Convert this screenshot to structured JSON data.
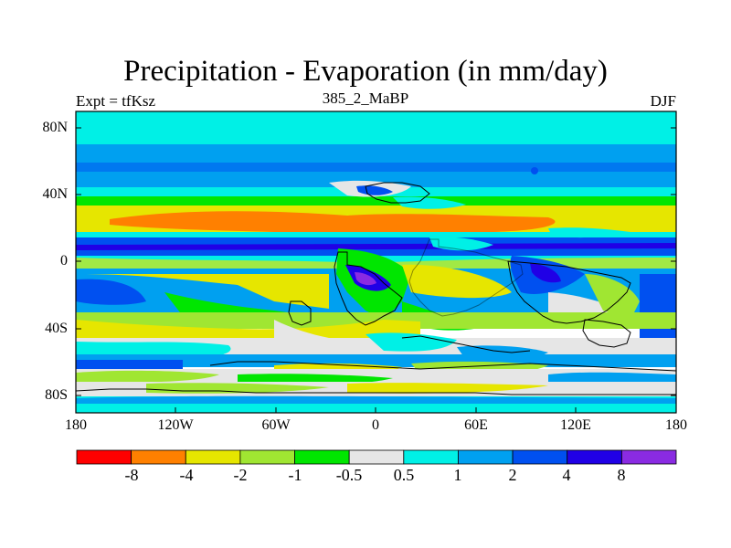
{
  "map": {
    "title": "Precipitation - Evaporation (in mm/day)",
    "left_label": "Expt = tfKsz",
    "center_label": "385_2_MaBP",
    "right_label": "DJF",
    "lat_ticks": [
      "80N",
      "40N",
      "0",
      "40S",
      "80S"
    ],
    "lon_ticks": [
      "180",
      "120W",
      "60W",
      "0",
      "60E",
      "120E",
      "180"
    ]
  },
  "colorbar": {
    "labels": [
      "-8",
      "-4",
      "-2",
      "-1",
      "-0.5",
      "0.5",
      "1",
      "2",
      "4",
      "8"
    ],
    "colors": [
      "#ff0000",
      "#ff8000",
      "#e6e600",
      "#a0e632",
      "#00e600",
      "#e6e6e6",
      "#00f0e6",
      "#00a0f0",
      "#0050f0",
      "#2000e6",
      "#8a2be2"
    ]
  },
  "colors": {
    "dry_strong": "#ff8000",
    "dry": "#e6e600",
    "moist_weak": "#a0e632",
    "neutral": "#e6e6e6",
    "wet_weak": "#00f0e6",
    "wet": "#00a0f0",
    "wet_strong": "#0050f0",
    "wet_max": "#2000e6",
    "very_wet": "#8a2be2"
  }
}
